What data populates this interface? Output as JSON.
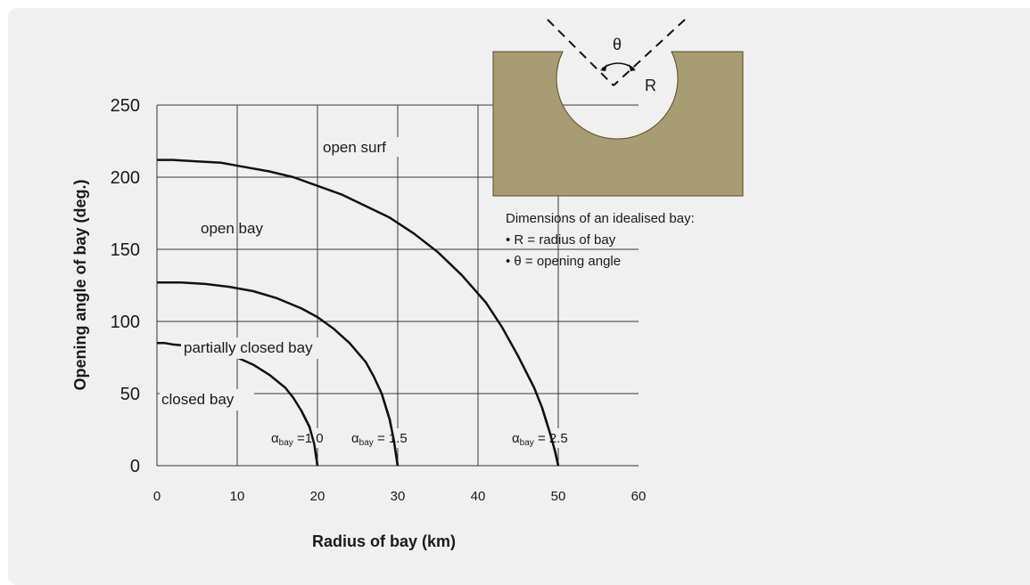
{
  "chart_data": {
    "type": "line",
    "xlabel": "Radius of bay  (km)",
    "ylabel": "Opening angle of bay (deg.)",
    "xlim": [
      0,
      60
    ],
    "ylim": [
      0,
      250
    ],
    "x_ticks": [
      "0",
      "10",
      "20",
      "30",
      "40",
      "50",
      "60"
    ],
    "y_ticks": [
      "0",
      "50",
      "100",
      "150",
      "200",
      "250"
    ],
    "grid": true,
    "series": [
      {
        "name": "1.0",
        "label_main": "α",
        "label_sub": "bay",
        "label_rest": " =1.0",
        "x": [
          0,
          1,
          2,
          4,
          6,
          8,
          10,
          12,
          14,
          16,
          17,
          18,
          19,
          19.6,
          20
        ],
        "y": [
          85,
          85,
          84,
          83,
          81,
          78,
          75,
          70,
          63,
          54,
          47,
          38,
          27,
          15,
          0
        ]
      },
      {
        "name": "1.5",
        "label_main": "α",
        "label_sub": "bay",
        "label_rest": " = 1.5",
        "x": [
          0,
          3,
          6,
          9,
          12,
          15,
          18,
          20,
          22,
          24,
          26,
          27,
          28,
          29,
          29.5,
          30
        ],
        "y": [
          127,
          127,
          126,
          124,
          121,
          116,
          109,
          103,
          95,
          85,
          72,
          62,
          50,
          32,
          18,
          0
        ]
      },
      {
        "name": "2.5",
        "label_main": "α",
        "label_sub": "bay",
        "label_rest": " = 2.5",
        "x": [
          0,
          2,
          5,
          8,
          11,
          14,
          17,
          20,
          23,
          26,
          29,
          32,
          35,
          38,
          41,
          43,
          45,
          47,
          48,
          49,
          49.6,
          50
        ],
        "y": [
          212,
          212,
          211,
          210,
          207,
          204,
          200,
          194,
          188,
          180,
          172,
          161,
          148,
          132,
          113,
          96,
          76,
          54,
          40,
          22,
          10,
          0
        ]
      }
    ],
    "regions": [
      "open surf",
      "open bay",
      "partially closed bay",
      "closed bay"
    ]
  },
  "inset": {
    "theta_label": "θ",
    "r_label": "R",
    "fill_color": "#a89c75",
    "description_title": "Dimensions of an idealised bay:",
    "bullets": [
      "• R = radius of bay",
      "• θ = opening angle"
    ]
  }
}
